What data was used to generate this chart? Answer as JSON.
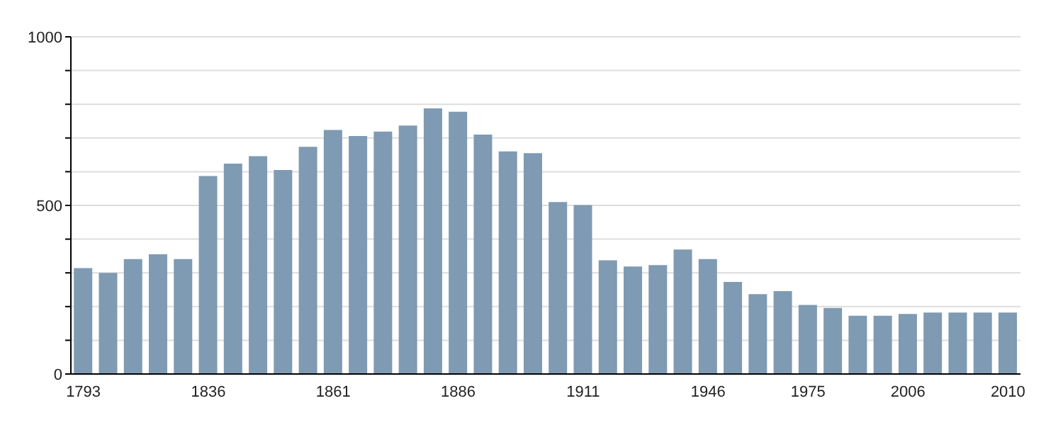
{
  "chart_data": {
    "type": "bar",
    "categories": [
      "1793",
      null,
      null,
      null,
      null,
      "1836",
      null,
      null,
      null,
      null,
      "1861",
      null,
      null,
      null,
      null,
      "1886",
      null,
      null,
      null,
      null,
      "1911",
      null,
      null,
      null,
      null,
      "1946",
      null,
      null,
      null,
      "1975",
      null,
      null,
      null,
      "2006",
      null,
      null,
      null,
      "2010"
    ],
    "values": [
      314,
      300,
      341,
      355,
      341,
      587,
      624,
      646,
      605,
      674,
      724,
      706,
      719,
      737,
      788,
      778,
      710,
      660,
      655,
      510,
      501,
      337,
      319,
      323,
      369,
      341,
      273,
      237,
      246,
      205,
      196,
      173,
      173,
      178,
      182,
      182,
      182,
      182
    ],
    "color": "#7f9ab3",
    "ylim": [
      0,
      1000
    ],
    "yticks": [
      0,
      {
        "value": 100,
        "label": null
      },
      {
        "value": 200,
        "label": null
      },
      {
        "value": 300,
        "label": null
      },
      {
        "value": 400,
        "label": null
      },
      500,
      {
        "value": 600,
        "label": null
      },
      {
        "value": 700,
        "label": null
      },
      {
        "value": 800,
        "label": null
      },
      {
        "value": 900,
        "label": null
      },
      1000
    ],
    "grid": "y"
  }
}
